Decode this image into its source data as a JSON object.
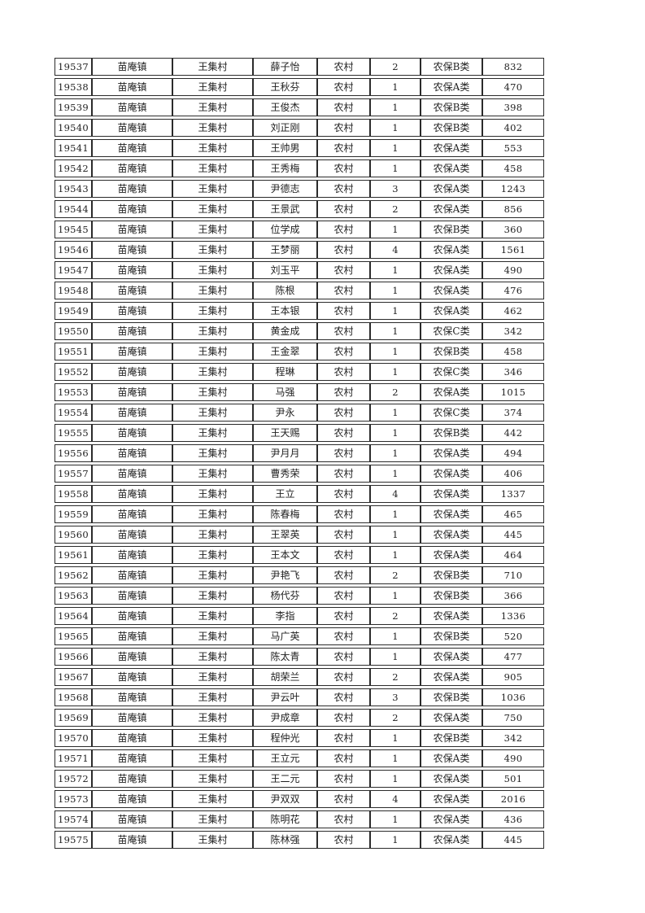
{
  "page": {
    "background_color": "#ffffff",
    "border_color": "#2b2b2b",
    "text_color": "#222222"
  },
  "table": {
    "column_keys": [
      "id",
      "town",
      "village",
      "name",
      "residence",
      "person-count",
      "insurance-category",
      "amount"
    ],
    "numeric_columns": [
      0,
      5,
      7
    ],
    "rows": [
      [
        "19537",
        "苗庵镇",
        "王集村",
        "薛子怡",
        "农村",
        "2",
        "农保B类",
        "832"
      ],
      [
        "19538",
        "苗庵镇",
        "王集村",
        "王秋芬",
        "农村",
        "1",
        "农保A类",
        "470"
      ],
      [
        "19539",
        "苗庵镇",
        "王集村",
        "王俊杰",
        "农村",
        "1",
        "农保B类",
        "398"
      ],
      [
        "19540",
        "苗庵镇",
        "王集村",
        "刘正刚",
        "农村",
        "1",
        "农保B类",
        "402"
      ],
      [
        "19541",
        "苗庵镇",
        "王集村",
        "王帅男",
        "农村",
        "1",
        "农保A类",
        "553"
      ],
      [
        "19542",
        "苗庵镇",
        "王集村",
        "王秀梅",
        "农村",
        "1",
        "农保A类",
        "458"
      ],
      [
        "19543",
        "苗庵镇",
        "王集村",
        "尹德志",
        "农村",
        "3",
        "农保A类",
        "1243"
      ],
      [
        "19544",
        "苗庵镇",
        "王集村",
        "王景武",
        "农村",
        "2",
        "农保A类",
        "856"
      ],
      [
        "19545",
        "苗庵镇",
        "王集村",
        "位学成",
        "农村",
        "1",
        "农保B类",
        "360"
      ],
      [
        "19546",
        "苗庵镇",
        "王集村",
        "王梦丽",
        "农村",
        "4",
        "农保A类",
        "1561"
      ],
      [
        "19547",
        "苗庵镇",
        "王集村",
        "刘玉平",
        "农村",
        "1",
        "农保A类",
        "490"
      ],
      [
        "19548",
        "苗庵镇",
        "王集村",
        "陈根",
        "农村",
        "1",
        "农保A类",
        "476"
      ],
      [
        "19549",
        "苗庵镇",
        "王集村",
        "王本银",
        "农村",
        "1",
        "农保A类",
        "462"
      ],
      [
        "19550",
        "苗庵镇",
        "王集村",
        "黄金成",
        "农村",
        "1",
        "农保C类",
        "342"
      ],
      [
        "19551",
        "苗庵镇",
        "王集村",
        "王金翠",
        "农村",
        "1",
        "农保B类",
        "458"
      ],
      [
        "19552",
        "苗庵镇",
        "王集村",
        "程琳",
        "农村",
        "1",
        "农保C类",
        "346"
      ],
      [
        "19553",
        "苗庵镇",
        "王集村",
        "马强",
        "农村",
        "2",
        "农保A类",
        "1015"
      ],
      [
        "19554",
        "苗庵镇",
        "王集村",
        "尹永",
        "农村",
        "1",
        "农保C类",
        "374"
      ],
      [
        "19555",
        "苗庵镇",
        "王集村",
        "王天赐",
        "农村",
        "1",
        "农保B类",
        "442"
      ],
      [
        "19556",
        "苗庵镇",
        "王集村",
        "尹月月",
        "农村",
        "1",
        "农保A类",
        "494"
      ],
      [
        "19557",
        "苗庵镇",
        "王集村",
        "曹秀荣",
        "农村",
        "1",
        "农保A类",
        "406"
      ],
      [
        "19558",
        "苗庵镇",
        "王集村",
        "王立",
        "农村",
        "4",
        "农保A类",
        "1337"
      ],
      [
        "19559",
        "苗庵镇",
        "王集村",
        "陈春梅",
        "农村",
        "1",
        "农保A类",
        "465"
      ],
      [
        "19560",
        "苗庵镇",
        "王集村",
        "王翠英",
        "农村",
        "1",
        "农保A类",
        "445"
      ],
      [
        "19561",
        "苗庵镇",
        "王集村",
        "王本文",
        "农村",
        "1",
        "农保A类",
        "464"
      ],
      [
        "19562",
        "苗庵镇",
        "王集村",
        "尹艳飞",
        "农村",
        "2",
        "农保B类",
        "710"
      ],
      [
        "19563",
        "苗庵镇",
        "王集村",
        "杨代芬",
        "农村",
        "1",
        "农保B类",
        "366"
      ],
      [
        "19564",
        "苗庵镇",
        "王集村",
        "李指",
        "农村",
        "2",
        "农保A类",
        "1336"
      ],
      [
        "19565",
        "苗庵镇",
        "王集村",
        "马广英",
        "农村",
        "1",
        "农保B类",
        "520"
      ],
      [
        "19566",
        "苗庵镇",
        "王集村",
        "陈太青",
        "农村",
        "1",
        "农保A类",
        "477"
      ],
      [
        "19567",
        "苗庵镇",
        "王集村",
        "胡荣兰",
        "农村",
        "2",
        "农保A类",
        "905"
      ],
      [
        "19568",
        "苗庵镇",
        "王集村",
        "尹云叶",
        "农村",
        "3",
        "农保B类",
        "1036"
      ],
      [
        "19569",
        "苗庵镇",
        "王集村",
        "尹成章",
        "农村",
        "2",
        "农保A类",
        "750"
      ],
      [
        "19570",
        "苗庵镇",
        "王集村",
        "程仲光",
        "农村",
        "1",
        "农保B类",
        "342"
      ],
      [
        "19571",
        "苗庵镇",
        "王集村",
        "王立元",
        "农村",
        "1",
        "农保A类",
        "490"
      ],
      [
        "19572",
        "苗庵镇",
        "王集村",
        "王二元",
        "农村",
        "1",
        "农保A类",
        "501"
      ],
      [
        "19573",
        "苗庵镇",
        "王集村",
        "尹双双",
        "农村",
        "4",
        "农保A类",
        "2016"
      ],
      [
        "19574",
        "苗庵镇",
        "王集村",
        "陈明花",
        "农村",
        "1",
        "农保A类",
        "436"
      ],
      [
        "19575",
        "苗庵镇",
        "王集村",
        "陈林强",
        "农村",
        "1",
        "农保A类",
        "445"
      ]
    ]
  }
}
